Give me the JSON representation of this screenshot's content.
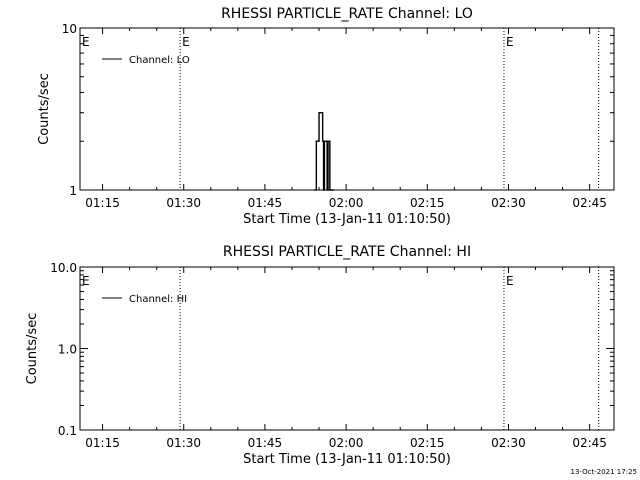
{
  "footer": {
    "timestamp": "13-Oct-2021 17:25"
  },
  "chart_data": [
    {
      "type": "line",
      "title": "RHESSI PARTICLE_RATE Channel: LO",
      "xlabel": "Start Time (13-Jan-11 01:10:50)",
      "ylabel": "Counts/sec",
      "y_scale": "log",
      "ylim": [
        1,
        10
      ],
      "xlim": [
        "01:10:50",
        "02:49:30"
      ],
      "x_tick_labels": [
        "01:15",
        "01:30",
        "01:45",
        "02:00",
        "02:15",
        "02:30",
        "02:45"
      ],
      "y_tick_labels": [
        {
          "value": 1,
          "label": "1"
        },
        {
          "value": 10,
          "label": "10"
        }
      ],
      "legend": {
        "position": "top-left",
        "entries": [
          "Channel: LO"
        ]
      },
      "event_lines": [
        {
          "time": "01:29:20",
          "label": "E"
        },
        {
          "time": "02:29:10",
          "label": "E"
        },
        {
          "time": "02:46:40",
          "label": ""
        }
      ],
      "edge_marker_label": "E",
      "series": [
        {
          "name": "Channel: LO",
          "x": [
            "01:54:10",
            "01:54:30",
            "01:55:00",
            "01:55:20",
            "01:55:40",
            "01:55:50",
            "01:56:00",
            "01:56:10",
            "01:56:30",
            "01:56:40",
            "01:56:50",
            "01:57:00",
            "01:57:20",
            "01:57:40"
          ],
          "y": [
            1,
            2,
            3,
            3,
            2,
            1,
            2,
            2,
            1,
            2,
            2,
            1,
            1,
            1
          ]
        }
      ]
    },
    {
      "type": "line",
      "title": "RHESSI PARTICLE_RATE Channel: HI",
      "xlabel": "Start Time (13-Jan-11 01:10:50)",
      "ylabel": "Counts/sec",
      "y_scale": "log",
      "ylim": [
        0.1,
        10
      ],
      "xlim": [
        "01:10:50",
        "02:49:30"
      ],
      "x_tick_labels": [
        "01:15",
        "01:30",
        "01:45",
        "02:00",
        "02:15",
        "02:30",
        "02:45"
      ],
      "y_tick_labels": [
        {
          "value": 0.1,
          "label": "0.1"
        },
        {
          "value": 1,
          "label": "1.0"
        },
        {
          "value": 10,
          "label": "10.0"
        }
      ],
      "legend": {
        "position": "top-left",
        "entries": [
          "Channel: HI"
        ]
      },
      "event_lines": [
        {
          "time": "01:29:20",
          "label": ""
        },
        {
          "time": "02:29:10",
          "label": "E"
        },
        {
          "time": "02:46:40",
          "label": ""
        }
      ],
      "edge_marker_label": "E",
      "series": [
        {
          "name": "Channel: HI",
          "x": [],
          "y": []
        }
      ]
    }
  ]
}
